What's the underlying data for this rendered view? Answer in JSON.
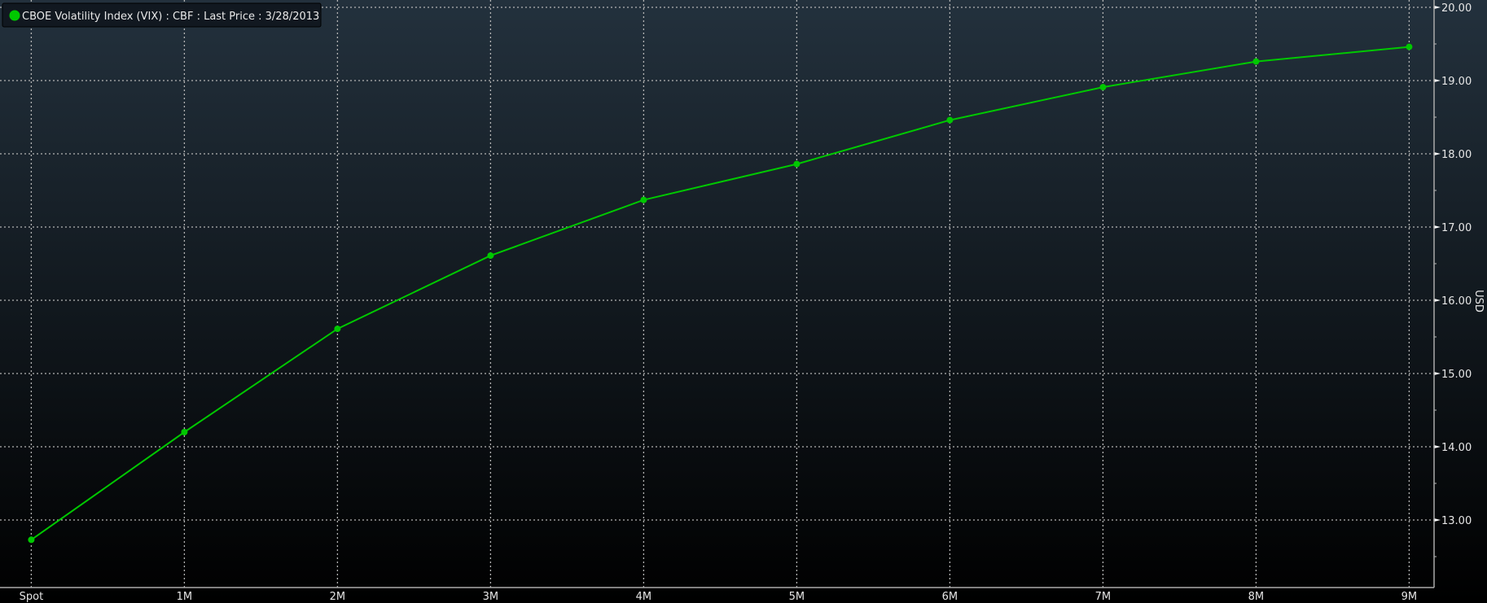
{
  "chart_data": {
    "type": "line",
    "title": "",
    "legend": {
      "label": "CBOE Volatility Index (VIX) : CBF : Last Price : 3/28/2013",
      "placement": "top-left"
    },
    "xlabel": "",
    "ylabel": "USD",
    "categories": [
      "Spot",
      "1M",
      "2M",
      "3M",
      "4M",
      "5M",
      "6M",
      "7M",
      "8M",
      "9M"
    ],
    "series": [
      {
        "name": "CBOE Volatility Index (VIX) : CBF : Last Price : 3/28/2013",
        "values": [
          12.73,
          14.2,
          15.61,
          16.61,
          17.37,
          17.86,
          18.46,
          18.91,
          19.26,
          19.46
        ]
      }
    ],
    "ylim": [
      12.1,
      20.05
    ],
    "yticks": [
      "13.00",
      "14.00",
      "15.00",
      "16.00",
      "17.00",
      "18.00",
      "19.00",
      "20.00"
    ],
    "grid": true,
    "y_axis_side": "right",
    "colors": {
      "series": "#00c800",
      "bg_top": "#23313d",
      "bg_bottom": "#000000",
      "grid": "#b4b4b4"
    }
  }
}
